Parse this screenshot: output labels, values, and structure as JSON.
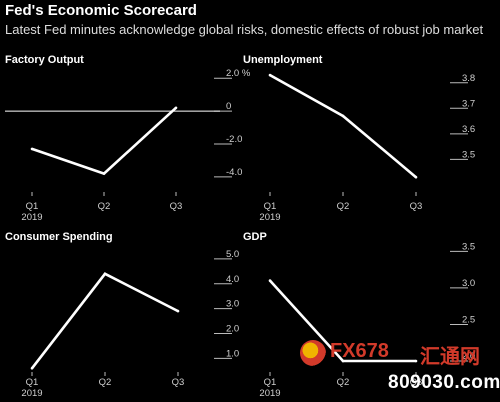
{
  "header": {
    "title": "Fed's Economic Scorecard",
    "subtitle": "Latest Fed minutes acknowledge global risks, domestic effects of robust job market"
  },
  "chart_data": [
    {
      "type": "line",
      "title": "Factory Output",
      "categories": [
        "Q1",
        "Q2",
        "Q3"
      ],
      "category_sublabels": [
        "2019",
        "",
        ""
      ],
      "values": [
        -2.3,
        -3.8,
        0.2
      ],
      "ylim": [
        -4.8,
        2.5
      ],
      "yticks": [
        -4.0,
        -2.0,
        0,
        2.0
      ],
      "ytick_labels": [
        "-4.0",
        "-2.0",
        "0",
        "2.0 %"
      ],
      "zero_line": true
    },
    {
      "type": "line",
      "title": "Unemployment",
      "categories": [
        "Q1",
        "Q2",
        "Q3"
      ],
      "category_sublabels": [
        "2019",
        "",
        ""
      ],
      "values": [
        3.83,
        3.67,
        3.43
      ],
      "ylim": [
        3.38,
        3.85
      ],
      "yticks": [
        3.5,
        3.6,
        3.7,
        3.8
      ],
      "ytick_labels": [
        "3.5",
        "3.6",
        "3.7",
        "3.8"
      ]
    },
    {
      "type": "line",
      "title": "Consumer Spending",
      "categories": [
        "Q1",
        "Q2",
        "Q3"
      ],
      "category_sublabels": [
        "2019",
        "",
        ""
      ],
      "values": [
        0.6,
        4.4,
        2.9
      ],
      "ylim": [
        0.45,
        5.6
      ],
      "yticks": [
        1.0,
        2.0,
        3.0,
        4.0,
        5.0
      ],
      "ytick_labels": [
        "1.0",
        "2.0",
        "3.0",
        "4.0",
        "5.0"
      ]
    },
    {
      "type": "line",
      "title": "GDP",
      "categories": [
        "Q1",
        "Q2",
        "Q3"
      ],
      "category_sublabels": [
        "2019",
        "",
        ""
      ],
      "values": [
        3.1,
        2.0,
        2.0
      ],
      "ylim": [
        1.85,
        3.6
      ],
      "yticks": [
        2.0,
        2.5,
        3.0,
        3.5
      ],
      "ytick_labels": [
        "2.0",
        "2.5",
        "3.0",
        "3.5"
      ]
    }
  ],
  "watermark": {
    "brand": "FX678",
    "brand_cn": "汇通网",
    "domain": "809030.com",
    "colors": {
      "brand": "#d23a2a",
      "accent": "#f0b400",
      "domain": "#ffffff"
    }
  }
}
